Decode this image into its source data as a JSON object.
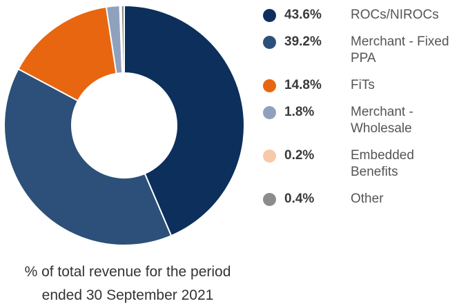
{
  "chart_data": {
    "type": "donut",
    "categories": [
      "ROCs/NIROCs",
      "Merchant - Fixed PPA",
      "FiTs",
      "Merchant - Wholesale",
      "Embedded Benefits",
      "Other"
    ],
    "values": [
      43.6,
      39.2,
      14.8,
      1.8,
      0.2,
      0.4
    ],
    "value_labels": [
      "43.6%",
      "39.2%",
      "14.8%",
      "1.8%",
      "0.2%",
      "0.4%"
    ],
    "colors": [
      "#0c2f5b",
      "#2c5079",
      "#e8660f",
      "#8fa1bd",
      "#f7c9a6",
      "#8c8c8c"
    ],
    "caption": "% of total revenue for the period ended 30 September 2021"
  }
}
